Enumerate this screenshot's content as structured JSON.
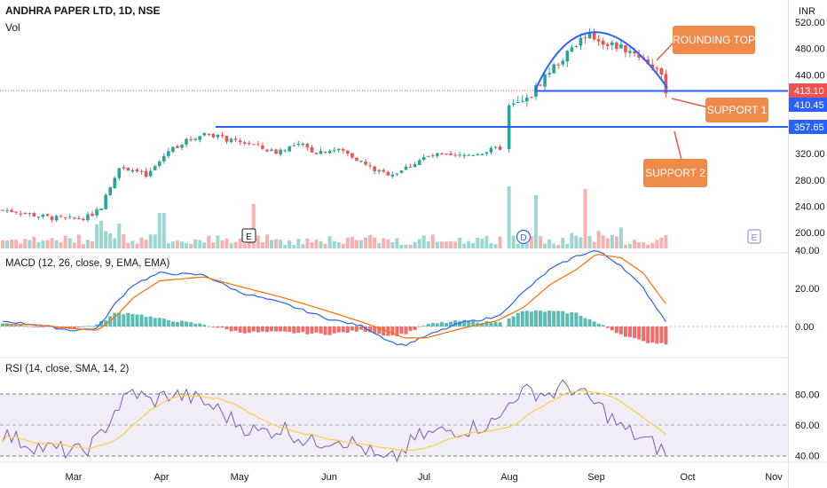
{
  "header": {
    "symbol_line": "ANDHRA PAPER LTD, 1D, NSE",
    "volume_label": "Vol",
    "currency": "INR"
  },
  "chart_data": [
    {
      "type": "candlestick",
      "title": "ANDHRA PAPER LTD, 1D, NSE",
      "ylabel": "INR",
      "ylim": [
        178,
        530
      ],
      "y_ticks": [
        200,
        240,
        280,
        320,
        360,
        400,
        440,
        480,
        520
      ],
      "y_tick_labels": [
        "200.00",
        "240.00",
        "280.00",
        "320.00",
        "360.00",
        "400.00",
        "440.00",
        "480.00",
        "520.00"
      ],
      "x_ticks": [
        "Mar",
        "Apr",
        "May",
        "Jun",
        "Jul",
        "Aug",
        "Sep",
        "Oct",
        "Nov"
      ],
      "grid": false,
      "price_badges": {
        "last_price": "413.10",
        "support_1": "410.45",
        "support_2": "357.65"
      },
      "annotations": {
        "rounding_top": "ROUNDING TOP",
        "support_1": "SUPPORT 1",
        "support_2": "SUPPORT 2",
        "earnings_marker_1": "E",
        "dividend_marker": "D",
        "earnings_marker_2": "E"
      },
      "candle_colors": {
        "up": "#26a69a",
        "down": "#ef5350"
      }
    },
    {
      "type": "line",
      "title": "MACD (12, 26, close, 9, EMA, EMA)",
      "ylim": [
        -22,
        42
      ],
      "y_ticks": [
        0,
        20,
        40
      ],
      "y_tick_labels": [
        "0.00",
        "20.00",
        "40.00"
      ],
      "series_colors": {
        "macd": "#2962ff",
        "signal": "#ff6d00"
      }
    },
    {
      "type": "line",
      "title": "RSI (14, close, SMA, 14, 2)",
      "ylim": [
        25,
        92
      ],
      "y_ticks": [
        40,
        60,
        80
      ],
      "y_tick_labels": [
        "40.00",
        "60.00",
        "80.00"
      ],
      "bands": [
        30,
        50,
        70
      ],
      "series_colors": {
        "rsi": "#7e57c2",
        "sma": "#f5d33f"
      }
    }
  ]
}
